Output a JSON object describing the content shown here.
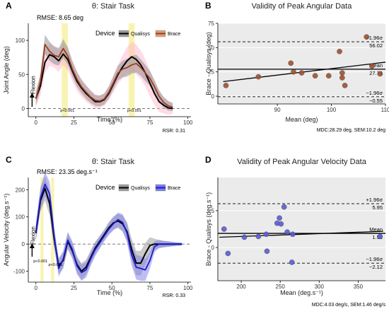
{
  "chart_data": [
    {
      "panel": "A",
      "type": "line",
      "title": "θ: Stair Task",
      "annotation": "RMSE: 8.65 deg",
      "xlabel": "Time (%)",
      "ylabel": "Joint Angle (deg)",
      "xlim": [
        -5,
        102
      ],
      "ylim": [
        -12,
        125
      ],
      "xticks": [
        0,
        25,
        50,
        75,
        100
      ],
      "yticks": [
        0,
        50,
        100
      ],
      "legend": {
        "title": "Device",
        "position": "top-right",
        "items": [
          "Qualisys",
          "Brace"
        ]
      },
      "direction_label": "Flexion",
      "highlights": [
        {
          "x": [
            17,
            21
          ],
          "label": "p<0.001"
        },
        {
          "x": [
            61,
            65
          ],
          "label": "p<0.001"
        }
      ],
      "footer": "RSR: 0.31",
      "series": [
        {
          "name": "Qualisys",
          "color": "#000000",
          "x": [
            0,
            3,
            6,
            9,
            12,
            15,
            18,
            21,
            24,
            27,
            30,
            33,
            36,
            39,
            42,
            45,
            48,
            51,
            54,
            57,
            60,
            63,
            66,
            69,
            72,
            75,
            78,
            81,
            84,
            87,
            90
          ],
          "y": [
            15,
            33,
            68,
            79,
            76,
            70,
            80,
            72,
            55,
            40,
            30,
            22,
            16,
            10,
            10,
            13,
            22,
            36,
            50,
            61,
            70,
            76,
            72,
            64,
            52,
            37,
            22,
            10,
            5,
            1,
            0
          ],
          "band": [
            12,
            14,
            16,
            16,
            16,
            16,
            16,
            16,
            15,
            14,
            13,
            12,
            11,
            10,
            9,
            9,
            10,
            12,
            14,
            17,
            20,
            22,
            22,
            21,
            20,
            19,
            17,
            15,
            12,
            10,
            8
          ]
        },
        {
          "name": "Brace",
          "color": "#9b3d1c",
          "x": [
            0,
            3,
            6,
            9,
            12,
            15,
            18,
            21,
            24,
            27,
            30,
            33,
            36,
            39,
            42,
            45,
            48,
            51,
            54,
            57,
            60,
            63,
            66,
            69,
            72,
            75,
            78,
            81,
            84,
            87,
            90
          ],
          "y": [
            14,
            40,
            94,
            84,
            78,
            76,
            88,
            77,
            58,
            43,
            32,
            24,
            17,
            12,
            11,
            14,
            24,
            38,
            52,
            58,
            60,
            64,
            66,
            60,
            52,
            44,
            32,
            18,
            9,
            4,
            2
          ],
          "band": [
            10,
            12,
            14,
            14,
            13,
            13,
            14,
            13,
            12,
            11,
            10,
            10,
            9,
            8,
            8,
            8,
            9,
            10,
            11,
            12,
            13,
            13,
            13,
            12,
            12,
            11,
            10,
            9,
            8,
            7,
            6
          ]
        }
      ]
    },
    {
      "panel": "B",
      "type": "scatter",
      "title": "Validity of Peak Angular Data",
      "xlabel": "Mean (deg)",
      "ylabel": "Brace - Qualisys (deg)",
      "xlim": [
        79,
        110
      ],
      "ylim": [
        -8,
        75
      ],
      "xticks": [
        90,
        100,
        110
      ],
      "yticks": [
        0,
        25,
        50,
        75
      ],
      "points_color": "#a0522d",
      "points": [
        {
          "x": 80.5,
          "y": 11
        },
        {
          "x": 86.5,
          "y": 20
        },
        {
          "x": 92.5,
          "y": 34
        },
        {
          "x": 93,
          "y": 25
        },
        {
          "x": 94.5,
          "y": 24
        },
        {
          "x": 97,
          "y": 21
        },
        {
          "x": 99.5,
          "y": 21
        },
        {
          "x": 101.5,
          "y": 46
        },
        {
          "x": 102,
          "y": 24
        },
        {
          "x": 102,
          "y": 19
        },
        {
          "x": 102.5,
          "y": 11
        },
        {
          "x": 106.5,
          "y": 61
        },
        {
          "x": 107.5,
          "y": 31
        },
        {
          "x": 109,
          "y": 23
        }
      ],
      "regression": {
        "x": [
          80,
          110
        ],
        "y": [
          15,
          35
        ]
      },
      "lines": [
        {
          "name": "upper",
          "label": "+1.96σ",
          "value": 56.02,
          "value_label": "56.02",
          "style": "dashed"
        },
        {
          "name": "mean",
          "label": "Mean",
          "value": 27.74,
          "value_label": "27.74",
          "style": "solid"
        },
        {
          "name": "lower",
          "label": "−1.96σ",
          "value": -0.55,
          "value_label": "−0.55",
          "style": "dashed"
        }
      ],
      "footer": "MDC:28.29 deg, SEM:10.2 deg"
    },
    {
      "panel": "C",
      "type": "line",
      "title": "θ̇: Stair Task",
      "annotation": "RMSE: 23.35 deg.s⁻¹",
      "xlabel": "Time (%)",
      "ylabel": "Angular Velocity (deg.s⁻¹)",
      "xlim": [
        -5,
        102
      ],
      "ylim": [
        -140,
        245
      ],
      "xticks": [
        0,
        25,
        50,
        75,
        100
      ],
      "yticks": [
        -100,
        0,
        100,
        200
      ],
      "legend": {
        "title": "Device",
        "position": "top-right",
        "items": [
          "Qualisys",
          "Brace"
        ]
      },
      "direction_label": "Flexion",
      "highlights": [
        {
          "x": [
            3,
            5
          ],
          "label": "p<0.001"
        },
        {
          "x": [
            10,
            12
          ],
          "label": "p<0.001"
        }
      ],
      "footer": "RSR: 0.33",
      "series": [
        {
          "name": "Qualisys",
          "color": "#000000",
          "x": [
            0,
            3,
            6,
            9,
            12,
            15,
            18,
            21,
            24,
            27,
            30,
            33,
            36,
            39,
            42,
            45,
            48,
            51,
            54,
            57,
            60,
            63,
            66,
            69,
            72,
            75,
            78,
            81,
            84,
            87,
            90,
            93,
            96
          ],
          "y": [
            40,
            160,
            205,
            150,
            20,
            -80,
            -60,
            10,
            -25,
            -75,
            -100,
            -85,
            -50,
            -15,
            10,
            35,
            60,
            78,
            85,
            75,
            45,
            -20,
            -70,
            -70,
            -35,
            -5,
            0,
            0,
            0,
            0,
            0,
            0,
            0
          ],
          "band": [
            30,
            40,
            45,
            45,
            35,
            30,
            30,
            30,
            30,
            30,
            30,
            28,
            26,
            24,
            22,
            20,
            22,
            24,
            26,
            30,
            35,
            40,
            45,
            45,
            40,
            30,
            20,
            15,
            12,
            10,
            8,
            6,
            5
          ]
        },
        {
          "name": "Brace",
          "color": "#1c1ccc",
          "x": [
            0,
            3,
            6,
            9,
            12,
            15,
            18,
            21,
            24,
            27,
            30,
            33,
            36,
            39,
            42,
            45,
            48,
            51,
            54,
            57,
            60,
            63,
            66,
            69,
            72,
            75,
            78,
            81,
            84,
            87,
            90,
            93,
            96
          ],
          "y": [
            45,
            170,
            220,
            185,
            30,
            -90,
            -55,
            15,
            -20,
            -80,
            -105,
            -95,
            -55,
            -20,
            5,
            30,
            55,
            75,
            90,
            80,
            40,
            -40,
            -85,
            -90,
            -95,
            -60,
            -10,
            0,
            0,
            0,
            0,
            0,
            0
          ],
          "band": [
            30,
            40,
            45,
            45,
            35,
            30,
            30,
            30,
            30,
            30,
            30,
            28,
            26,
            24,
            22,
            20,
            22,
            24,
            26,
            30,
            35,
            40,
            45,
            45,
            40,
            30,
            20,
            15,
            12,
            10,
            8,
            6,
            5
          ]
        }
      ]
    },
    {
      "panel": "D",
      "type": "scatter",
      "title": "Validity of Peak Angular Velocity Data",
      "xlabel": "Mean (deg.s⁻¹)",
      "ylabel": "Brace - Qualisys (deg.s⁻¹)",
      "xlim": [
        170,
        385
      ],
      "ylim": [
        -4.5,
        9.5
      ],
      "xticks": [
        200,
        250,
        300,
        350
      ],
      "yticks": [
        0,
        5
      ],
      "points_color": "#5b5bd6",
      "points": [
        {
          "x": 178,
          "y": 2.5
        },
        {
          "x": 183,
          "y": -0.8
        },
        {
          "x": 204,
          "y": 1.4
        },
        {
          "x": 222,
          "y": 1.5
        },
        {
          "x": 232,
          "y": 1.8
        },
        {
          "x": 233,
          "y": -0.5
        },
        {
          "x": 246,
          "y": 3.3
        },
        {
          "x": 249,
          "y": 4.0
        },
        {
          "x": 251,
          "y": 3.2
        },
        {
          "x": 255,
          "y": 5.5
        },
        {
          "x": 259,
          "y": 2.1
        },
        {
          "x": 265,
          "y": -2.0
        },
        {
          "x": 266,
          "y": 1.8
        },
        {
          "x": 378,
          "y": 1.5
        }
      ],
      "regression": {
        "x": [
          172,
          382
        ],
        "y": [
          1.4,
          2.2
        ]
      },
      "lines": [
        {
          "name": "upper",
          "label": "+1.96σ",
          "value": 5.95,
          "value_label": "5.95",
          "style": "dashed"
        },
        {
          "name": "mean",
          "label": "Mean",
          "value": 1.92,
          "value_label": "1.92",
          "style": "solid"
        },
        {
          "name": "lower",
          "label": "−1.96σ",
          "value": -2.12,
          "value_label": "−2.12",
          "style": "dashed"
        }
      ],
      "footer": "MDC:4.03 deg/s, SEM:1.46 deg/s"
    }
  ]
}
